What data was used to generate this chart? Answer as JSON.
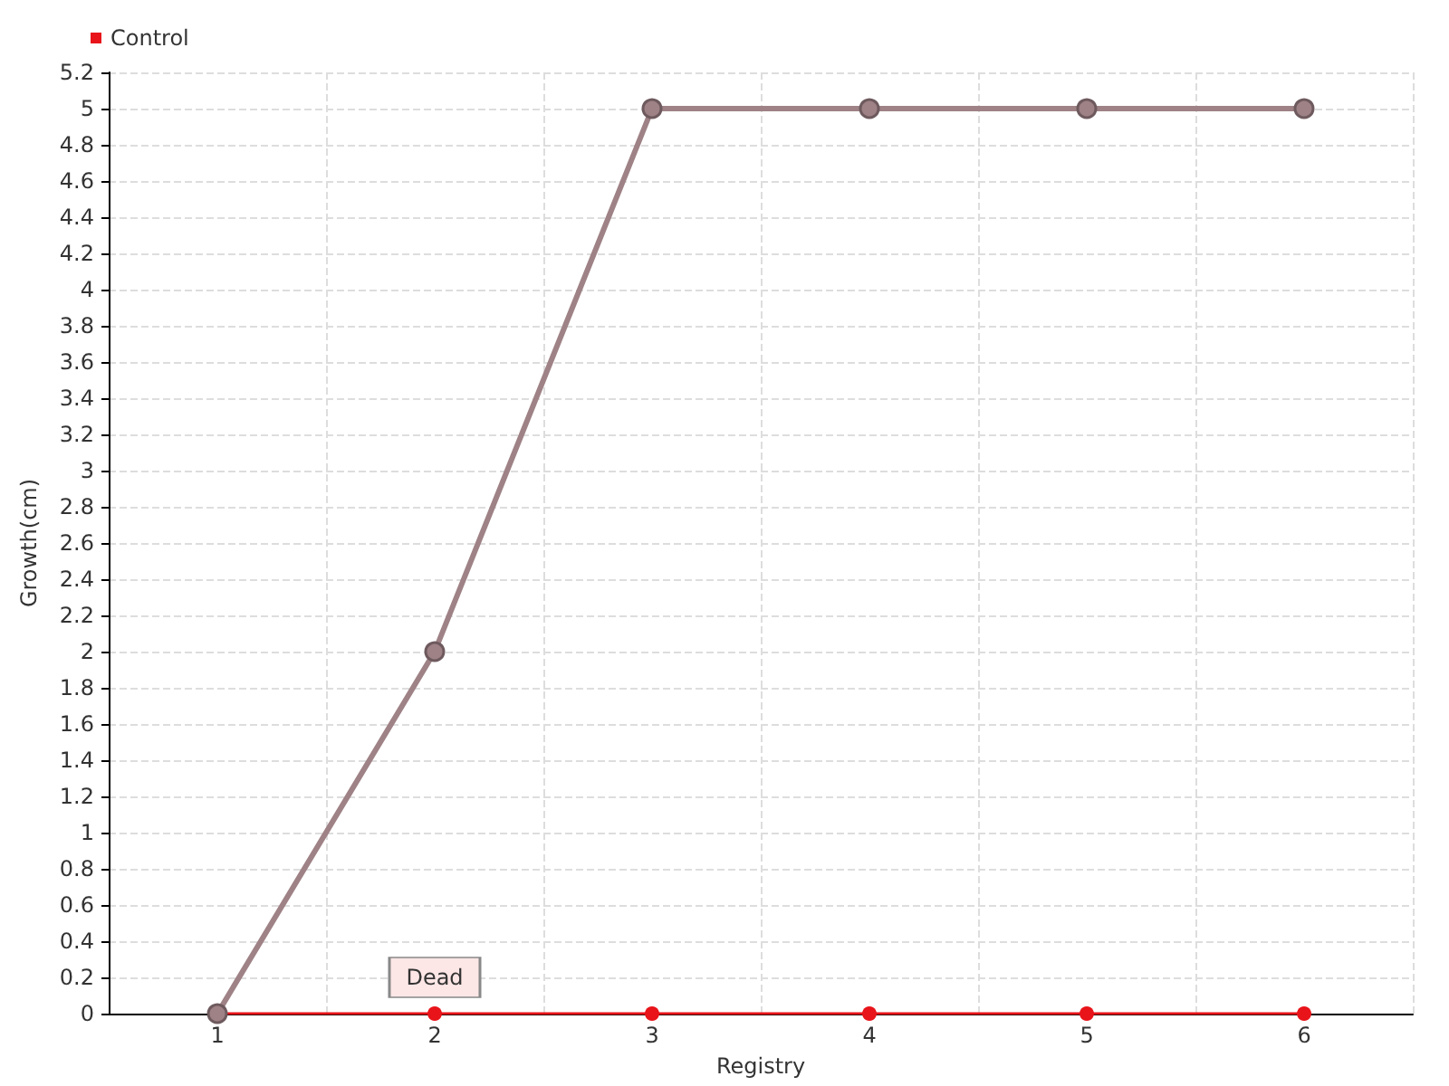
{
  "chart_data": {
    "type": "line",
    "xlabel": "Registry",
    "ylabel": "Growth(cm)",
    "categories": [
      "1",
      "2",
      "3",
      "4",
      "5",
      "6"
    ],
    "series": [
      {
        "color": "#9e8286",
        "values": [
          0,
          2,
          5,
          5,
          5,
          5
        ]
      },
      {
        "name": "Control",
        "color": "#e8141a",
        "values": [
          0,
          0,
          0,
          0,
          0,
          0
        ]
      }
    ],
    "ylim": [
      0,
      5.2
    ],
    "yticks": [
      0,
      0.2,
      0.4,
      0.6,
      0.8,
      1,
      1.2,
      1.4,
      1.6,
      1.8,
      2,
      2.2,
      2.4,
      2.6,
      2.8,
      3,
      3.2,
      3.4,
      3.6,
      3.8,
      4,
      4.2,
      4.4,
      4.6,
      4.8,
      5,
      5.2
    ],
    "annotations": [
      {
        "text": "Dead",
        "x": "2",
        "y": 0
      }
    ],
    "grid": true,
    "legend": "top left",
    "marker": "circle",
    "line_style": "solid"
  }
}
